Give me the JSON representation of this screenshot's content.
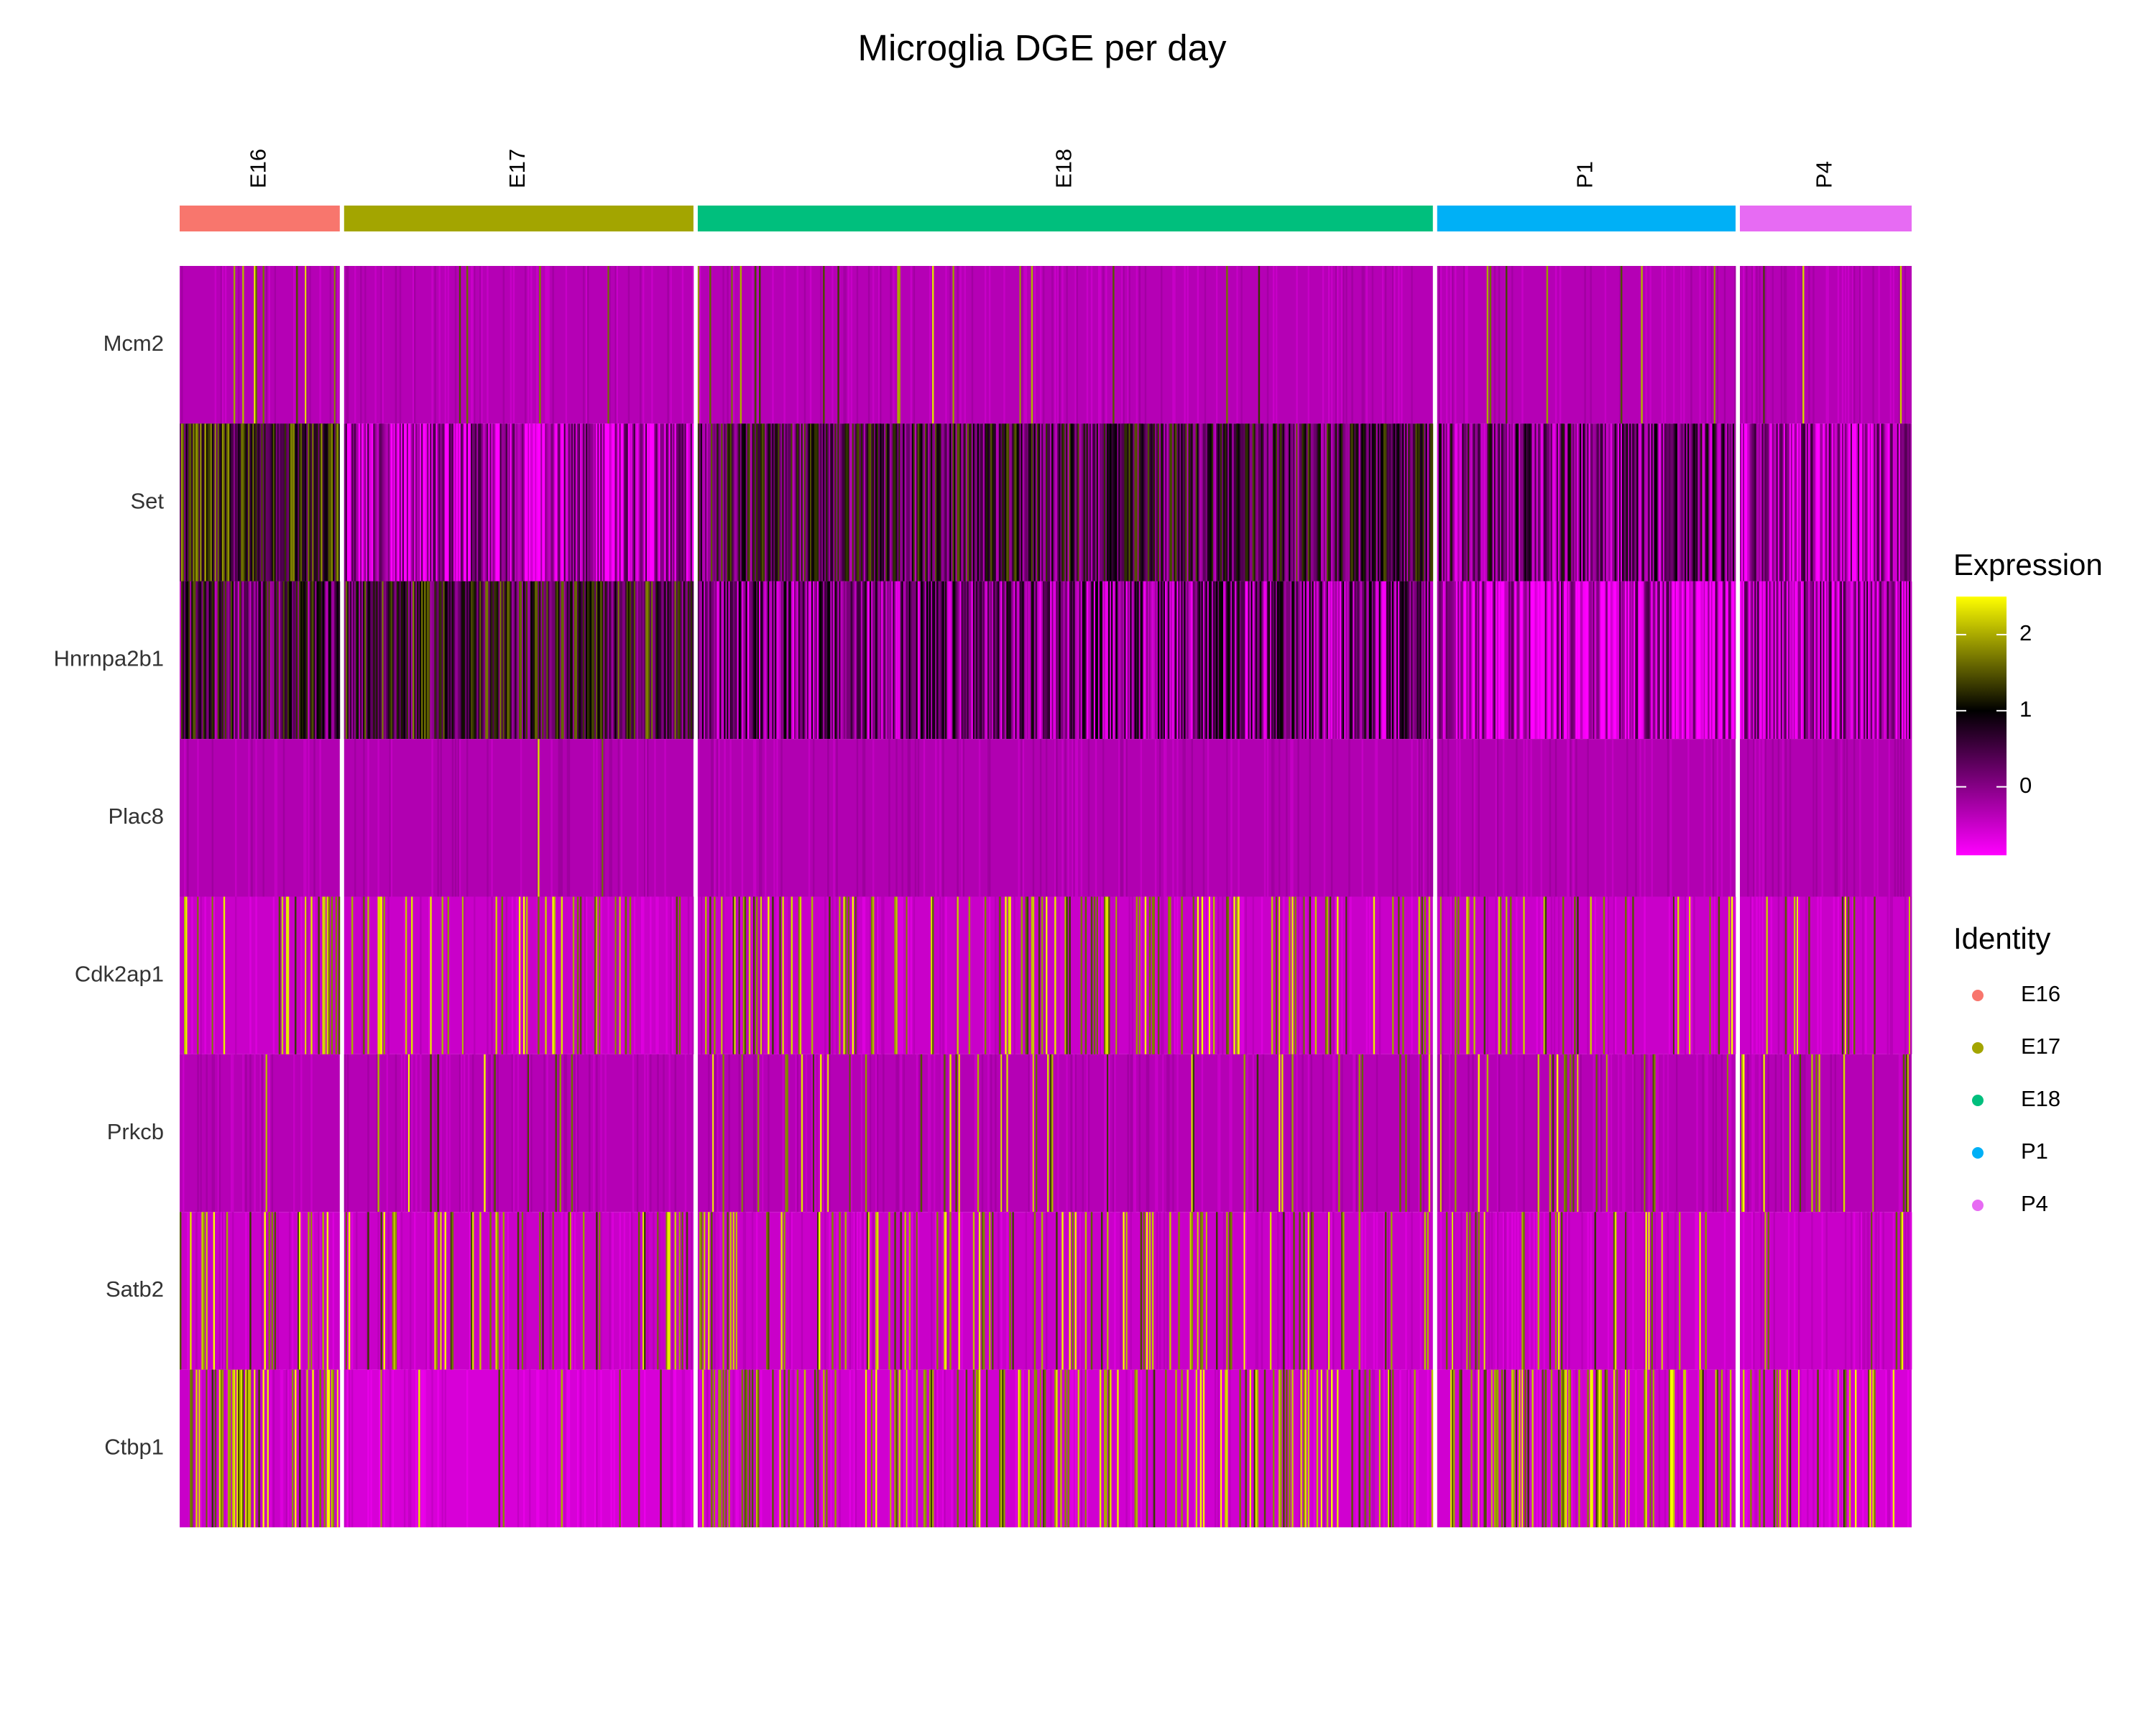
{
  "chart_data": {
    "type": "heatmap",
    "title": "Microglia DGE per day",
    "genes": [
      "Mcm2",
      "Set",
      "Hnrnpa2b1",
      "Plac8",
      "Cdk2ap1",
      "Prkcb",
      "Satb2",
      "Ctbp1"
    ],
    "groups": [
      {
        "name": "E16",
        "color": "#F8766D",
        "cells": 110
      },
      {
        "name": "E17",
        "color": "#A3A500",
        "cells": 240
      },
      {
        "name": "E18",
        "color": "#00BF7D",
        "cells": 505
      },
      {
        "name": "P1",
        "color": "#00B0F6",
        "cells": 205
      },
      {
        "name": "P4",
        "color": "#E76BF3",
        "cells": 118
      }
    ],
    "gene_profiles": {
      "Mcm2": {
        "E16": {
          "base": -0.35,
          "hot": 0.1
        },
        "E17": {
          "base": -0.35,
          "hot": 0.02
        },
        "E18": {
          "base": -0.35,
          "hot": 0.03
        },
        "P1": {
          "base": -0.35,
          "hot": 0.02
        },
        "P4": {
          "base": -0.35,
          "hot": 0.03
        }
      },
      "Set": {
        "E16": {
          "base": 0.95,
          "hot": 0.0
        },
        "E17": {
          "base": -0.4,
          "hot": 0.0
        },
        "E18": {
          "base": 0.55,
          "hot": 0.0
        },
        "P1": {
          "base": 0.2,
          "hot": 0.0
        },
        "P4": {
          "base": -0.3,
          "hot": 0.0
        }
      },
      "Hnrnpa2b1": {
        "E16": {
          "base": 0.5,
          "hot": 0.0
        },
        "E17": {
          "base": 0.75,
          "hot": 0.0
        },
        "E18": {
          "base": 0.1,
          "hot": 0.0
        },
        "P1": {
          "base": -0.4,
          "hot": 0.0
        },
        "P4": {
          "base": -0.2,
          "hot": 0.0
        }
      },
      "Plac8": {
        "E16": {
          "base": -0.32,
          "hot": 0.0
        },
        "E17": {
          "base": -0.32,
          "hot": 0.005
        },
        "E18": {
          "base": -0.32,
          "hot": 0.0
        },
        "P1": {
          "base": -0.32,
          "hot": 0.0
        },
        "P4": {
          "base": -0.32,
          "hot": 0.0
        }
      },
      "Cdk2ap1": {
        "E16": {
          "base": -0.5,
          "hot": 0.15
        },
        "E17": {
          "base": -0.5,
          "hot": 0.15
        },
        "E18": {
          "base": -0.5,
          "hot": 0.22
        },
        "P1": {
          "base": -0.5,
          "hot": 0.1
        },
        "P4": {
          "base": -0.5,
          "hot": 0.12
        }
      },
      "Prkcb": {
        "E16": {
          "base": -0.35,
          "hot": 0.02
        },
        "E17": {
          "base": -0.35,
          "hot": 0.03
        },
        "E18": {
          "base": -0.35,
          "hot": 0.06
        },
        "P1": {
          "base": -0.35,
          "hot": 0.08
        },
        "P4": {
          "base": -0.35,
          "hot": 0.08
        }
      },
      "Satb2": {
        "E16": {
          "base": -0.5,
          "hot": 0.1
        },
        "E17": {
          "base": -0.5,
          "hot": 0.2
        },
        "E18": {
          "base": -0.5,
          "hot": 0.18
        },
        "P1": {
          "base": -0.5,
          "hot": 0.12
        },
        "P4": {
          "base": -0.5,
          "hot": 0.03
        }
      },
      "Ctbp1": {
        "E16": {
          "base": -0.5,
          "hot": 0.35
        },
        "E17": {
          "base": -0.6,
          "hot": 0.03
        },
        "E18": {
          "base": -0.55,
          "hot": 0.25
        },
        "P1": {
          "base": -0.55,
          "hot": 0.3
        },
        "P4": {
          "base": -0.6,
          "hot": 0.15
        }
      }
    },
    "legend": {
      "expression": {
        "title": "Expression",
        "ticks": [
          "2",
          "1",
          "0"
        ],
        "tick_values": [
          2,
          1,
          0
        ],
        "range": [
          -0.9,
          2.5
        ],
        "colors": [
          "#FF00FF",
          "#000000",
          "#FFFF00"
        ]
      },
      "identity": {
        "title": "Identity",
        "items": [
          "E16",
          "E17",
          "E18",
          "P1",
          "P4"
        ],
        "colors": [
          "#F8766D",
          "#A3A500",
          "#00BF7D",
          "#00B0F6",
          "#E76BF3"
        ]
      },
      "placement": "right"
    }
  }
}
